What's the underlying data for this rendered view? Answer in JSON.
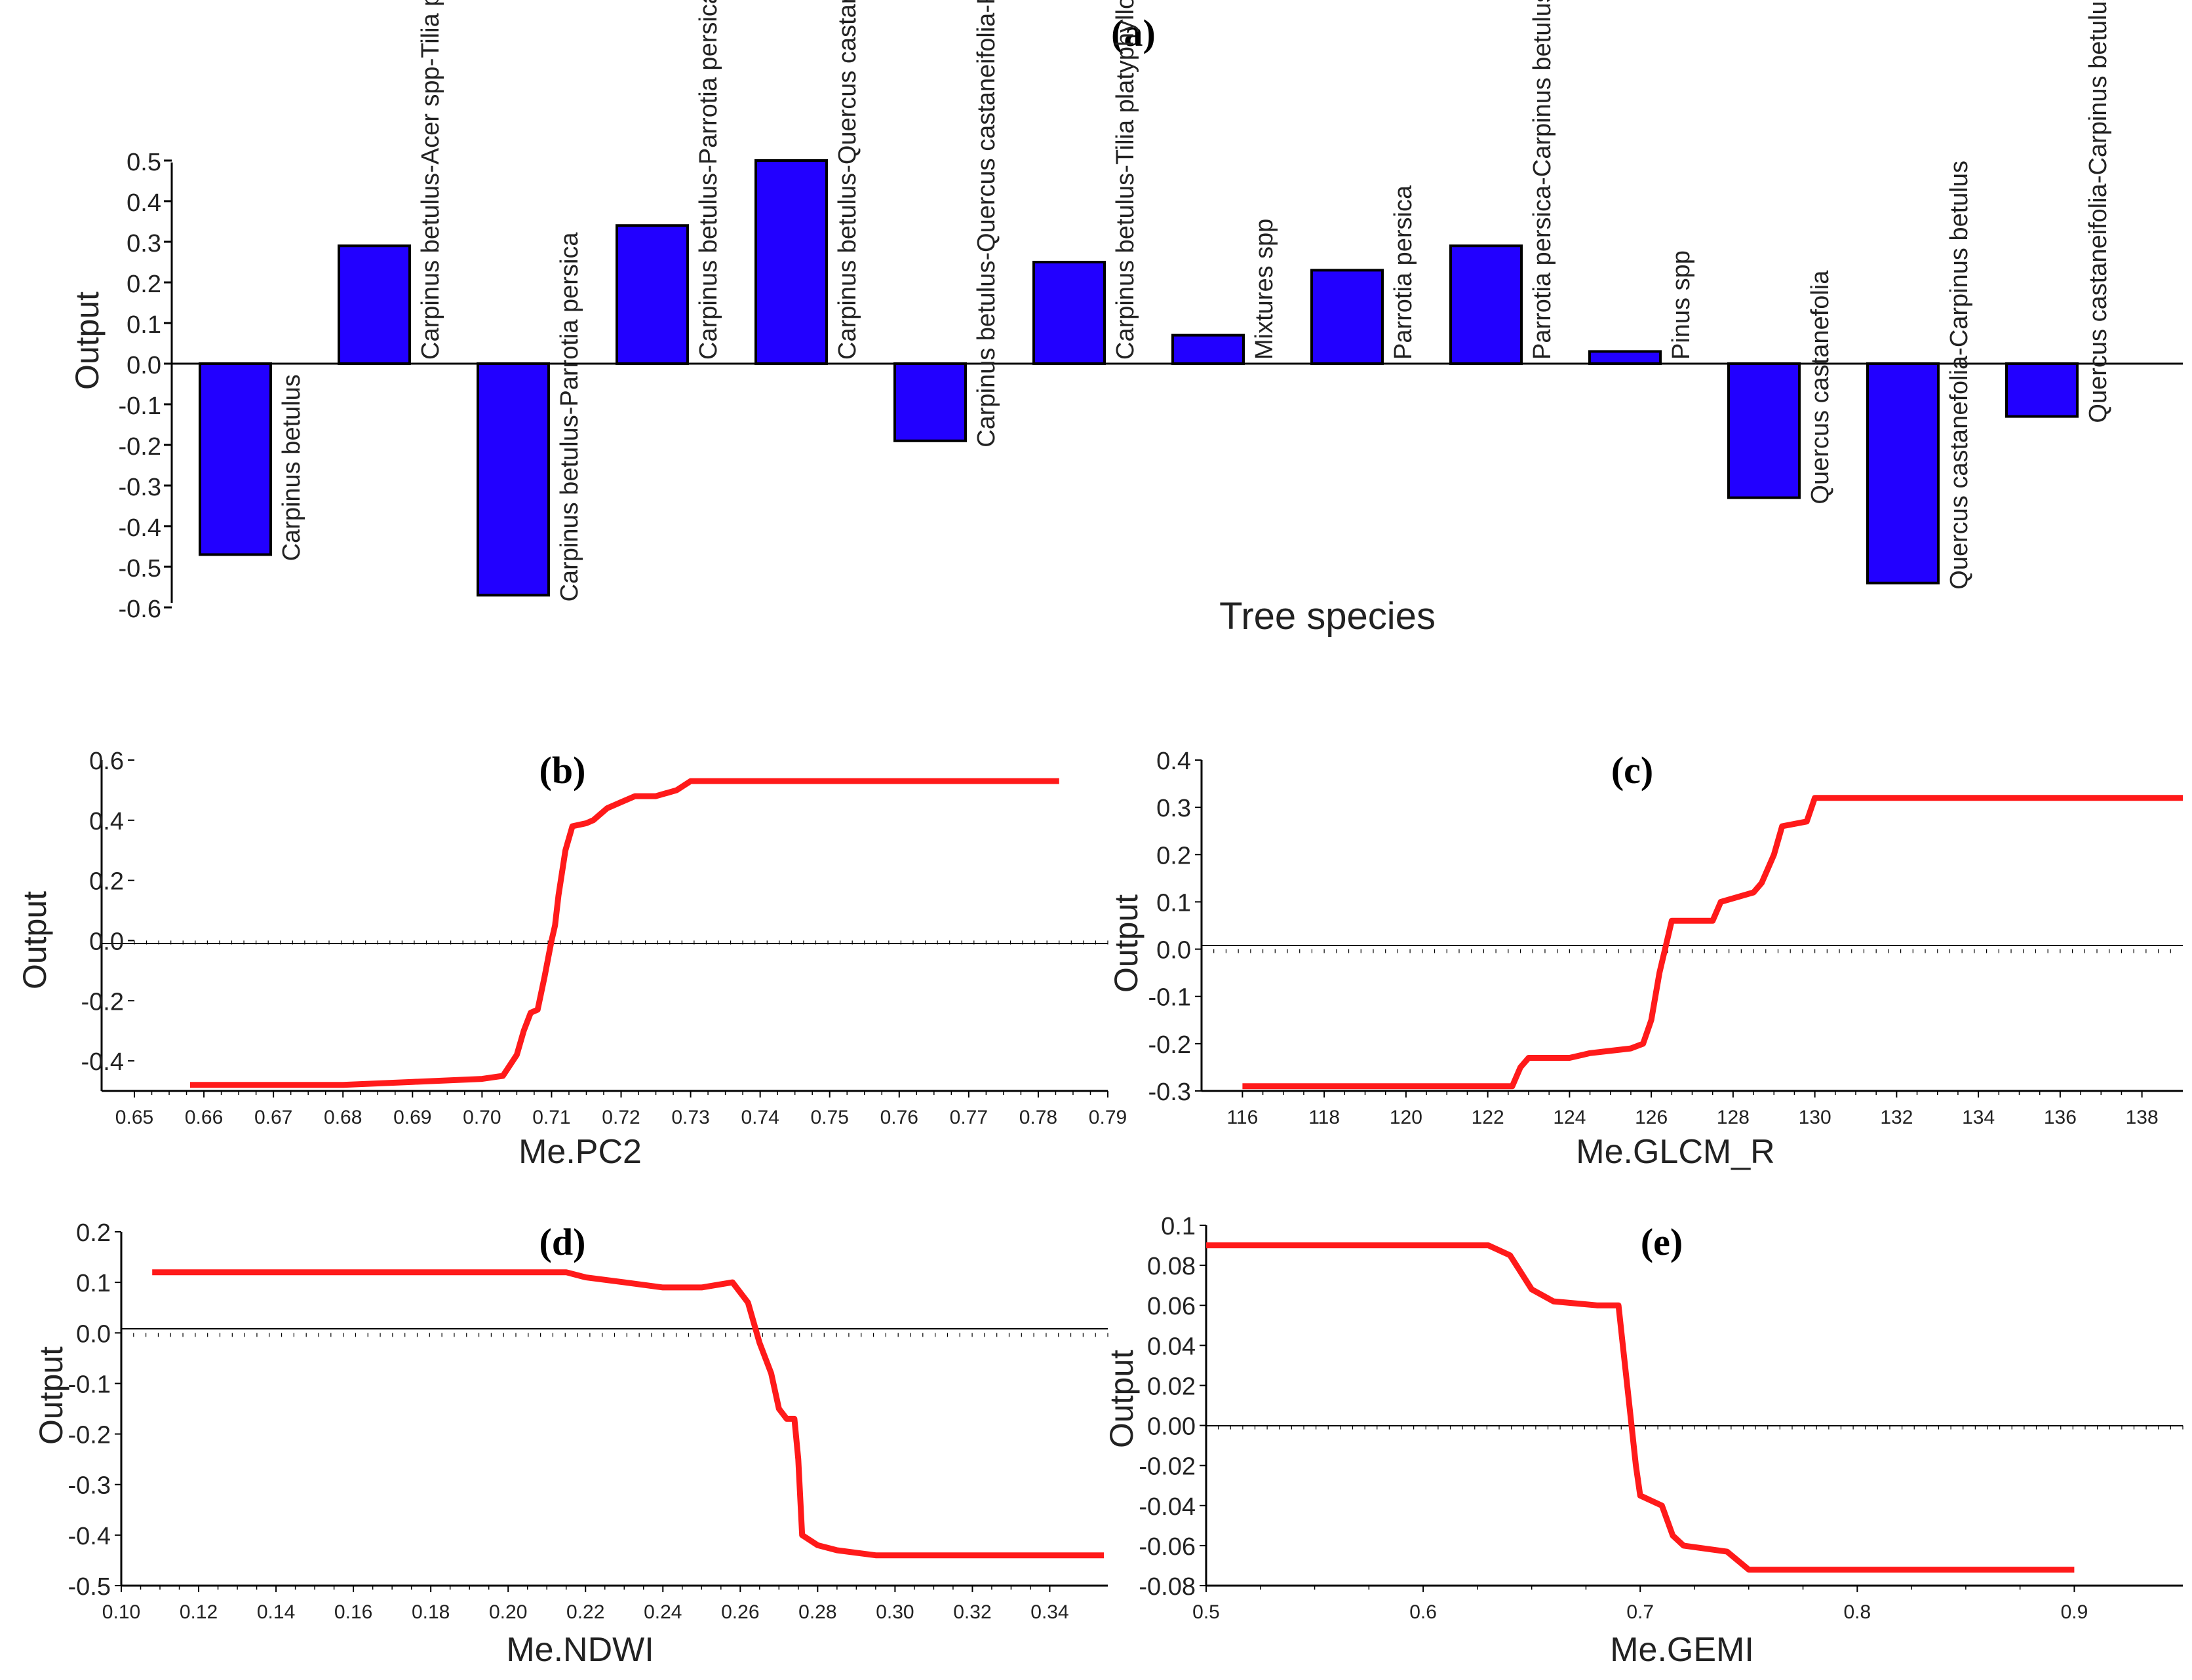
{
  "colors": {
    "bar": "#2200ff",
    "bar_stroke": "#000000",
    "line": "#ff1a1a",
    "axis": "#000000"
  },
  "chart_data": [
    {
      "panel": "(a)",
      "type": "bar",
      "title": "",
      "xlabel": "Tree species",
      "ylabel": "Output",
      "ylim": [
        -0.6,
        0.5
      ],
      "yticks": [
        "0.5",
        "0.4",
        "0.3",
        "0.2",
        "0.1",
        "0.0",
        "-0.1",
        "-0.2",
        "-0.3",
        "-0.4",
        "-0.5",
        "-0.6"
      ],
      "categories": [
        "Carpinus betulus",
        "Carpinus betulus-Acer spp-Tilia platyphyllos",
        "Carpinus betulus-Parrotia persica",
        "Carpinus betulus-Parrotia persica-Quercus castaneifolia",
        "Carpinus betulus-Quercus castanefolia",
        "Carpinus betulus-Quercus castaneifolia-Parrotia persica",
        "Carpinus betulus-Tilia platyphyllos-Parrotia persica",
        "Mixtures spp",
        "Parrotia persica",
        "Parrotia persica-Carpinus betulus",
        "Pinus spp",
        "Quercus castanefolia",
        "Quercus castanefolia-Carpinus betulus",
        "Quercus castaneifolia-Carpinus betulus-Parrotia persica"
      ],
      "values": [
        -0.47,
        0.29,
        -0.57,
        0.34,
        0.5,
        -0.19,
        0.25,
        0.07,
        0.23,
        0.29,
        0.03,
        -0.33,
        -0.54,
        -0.13
      ]
    },
    {
      "panel": "(b)",
      "type": "line",
      "xlabel": "Me.PC2",
      "ylabel": "Output",
      "xlim": [
        0.65,
        0.79
      ],
      "ylim": [
        -0.5,
        0.6
      ],
      "xticks": [
        "0.65",
        "0.66",
        "0.67",
        "0.68",
        "0.69",
        "0.70",
        "0.71",
        "0.72",
        "0.73",
        "0.74",
        "0.75",
        "0.76",
        "0.77",
        "0.78",
        "0.79"
      ],
      "yticks": [
        "0.6",
        "0.4",
        "0.2",
        "0.0",
        "-0.2",
        "-0.4"
      ],
      "x": [
        0.658,
        0.68,
        0.69,
        0.7,
        0.703,
        0.705,
        0.706,
        0.707,
        0.708,
        0.709,
        0.7095,
        0.71,
        0.7105,
        0.711,
        0.712,
        0.713,
        0.715,
        0.716,
        0.718,
        0.72,
        0.722,
        0.725,
        0.728,
        0.73,
        0.74,
        0.76,
        0.783
      ],
      "y": [
        -0.48,
        -0.48,
        -0.47,
        -0.46,
        -0.45,
        -0.38,
        -0.3,
        -0.24,
        -0.23,
        -0.12,
        -0.06,
        0.0,
        0.05,
        0.15,
        0.3,
        0.38,
        0.39,
        0.4,
        0.44,
        0.46,
        0.48,
        0.48,
        0.5,
        0.53,
        0.53,
        0.53,
        0.53
      ]
    },
    {
      "panel": "(c)",
      "type": "line",
      "xlabel": "Me.GLCM_R",
      "ylabel": "Output",
      "xlim": [
        115,
        139
      ],
      "ylim": [
        -0.3,
        0.4
      ],
      "xticks": [
        "116",
        "118",
        "120",
        "122",
        "124",
        "126",
        "128",
        "130",
        "132",
        "134",
        "136",
        "138"
      ],
      "yticks": [
        "0.4",
        "0.3",
        "0.2",
        "0.1",
        "0.0",
        "-0.1",
        "-0.2",
        "-0.3"
      ],
      "x": [
        116,
        122.6,
        122.8,
        123,
        124,
        124.5,
        125.5,
        125.8,
        126,
        126.2,
        126.5,
        127.5,
        127.7,
        128.5,
        128.7,
        129.0,
        129.2,
        129.8,
        130.0,
        135,
        139
      ],
      "y": [
        -0.29,
        -0.29,
        -0.25,
        -0.23,
        -0.23,
        -0.22,
        -0.21,
        -0.2,
        -0.15,
        -0.05,
        0.06,
        0.06,
        0.1,
        0.12,
        0.14,
        0.2,
        0.26,
        0.27,
        0.32,
        0.32,
        0.32
      ]
    },
    {
      "panel": "(d)",
      "type": "line",
      "xlabel": "Me.NDWI",
      "ylabel": "Output",
      "xlim": [
        0.1,
        0.355
      ],
      "ylim": [
        -0.5,
        0.2
      ],
      "xticks": [
        "0.10",
        "0.12",
        "0.14",
        "0.16",
        "0.18",
        "0.20",
        "0.22",
        "0.24",
        "0.26",
        "0.28",
        "0.30",
        "0.32",
        "0.34"
      ],
      "yticks": [
        "0.2",
        "0.1",
        "0.0",
        "-0.1",
        "-0.2",
        "-0.3",
        "-0.4",
        "-0.5"
      ],
      "x": [
        0.108,
        0.215,
        0.22,
        0.23,
        0.24,
        0.25,
        0.258,
        0.262,
        0.265,
        0.268,
        0.27,
        0.272,
        0.274,
        0.275,
        0.276,
        0.28,
        0.285,
        0.295,
        0.32,
        0.34,
        0.354
      ],
      "y": [
        0.12,
        0.12,
        0.11,
        0.1,
        0.09,
        0.09,
        0.1,
        0.06,
        -0.02,
        -0.08,
        -0.15,
        -0.17,
        -0.17,
        -0.25,
        -0.4,
        -0.42,
        -0.43,
        -0.44,
        -0.44,
        -0.44,
        -0.44
      ]
    },
    {
      "panel": "(e)",
      "type": "line",
      "xlabel": "Me.GEMI",
      "ylabel": "Output",
      "xlim": [
        0.5,
        0.95
      ],
      "ylim": [
        -0.08,
        0.1
      ],
      "xticks": [
        "0.5",
        "0.6",
        "0.7",
        "0.8",
        "0.9"
      ],
      "yticks": [
        "0.1",
        "0.08",
        "0.06",
        "0.04",
        "0.02",
        "0.00",
        "-0.02",
        "-0.04",
        "-0.06",
        "-0.08"
      ],
      "x": [
        0.5,
        0.63,
        0.64,
        0.65,
        0.66,
        0.68,
        0.69,
        0.692,
        0.695,
        0.698,
        0.7,
        0.71,
        0.715,
        0.72,
        0.74,
        0.75,
        0.8,
        0.9
      ],
      "y": [
        0.09,
        0.09,
        0.085,
        0.068,
        0.062,
        0.06,
        0.06,
        0.04,
        0.01,
        -0.02,
        -0.035,
        -0.04,
        -0.055,
        -0.06,
        -0.063,
        -0.072,
        -0.072,
        -0.072
      ]
    }
  ]
}
